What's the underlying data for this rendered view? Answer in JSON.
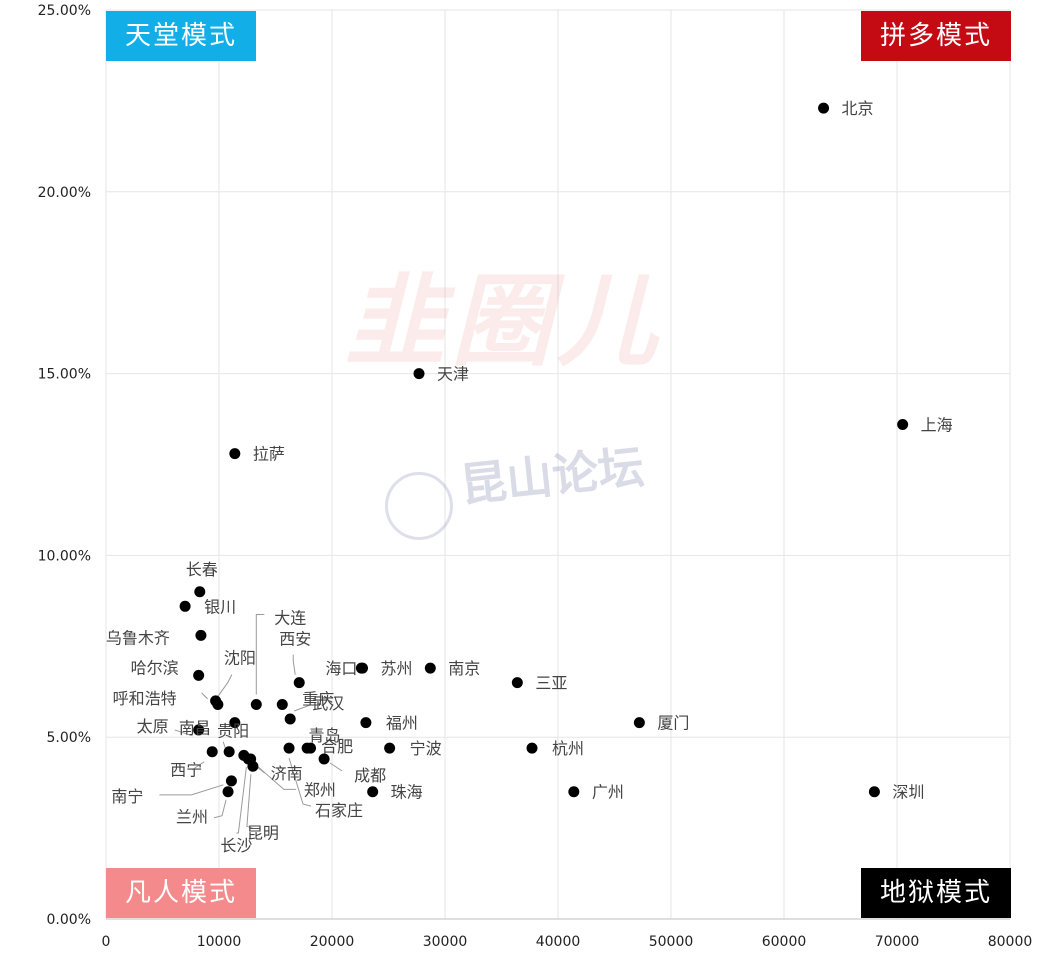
{
  "chart_data": {
    "type": "scatter",
    "title": "",
    "xlabel": "",
    "ylabel": "",
    "xlim": [
      0,
      80000
    ],
    "ylim": [
      0,
      0.25
    ],
    "x_ticks": [
      "0",
      "10000",
      "20000",
      "30000",
      "40000",
      "50000",
      "60000",
      "70000",
      "80000"
    ],
    "y_ticks": [
      "0.00%",
      "5.00%",
      "10.00%",
      "15.00%",
      "20.00%",
      "25.00%"
    ],
    "grid": true,
    "points": [
      {
        "label": "北京",
        "x": 63500,
        "y": 0.223
      },
      {
        "label": "天津",
        "x": 27700,
        "y": 0.15
      },
      {
        "label": "上海",
        "x": 70500,
        "y": 0.136
      },
      {
        "label": "拉萨",
        "x": 11400,
        "y": 0.128
      },
      {
        "label": "长春",
        "x": 8300,
        "y": 0.09
      },
      {
        "label": "银川",
        "x": 7000,
        "y": 0.086
      },
      {
        "label": "乌鲁木齐",
        "x": 8400,
        "y": 0.078
      },
      {
        "label": "大连",
        "x": 13300,
        "y": 0.059
      },
      {
        "label": "西安",
        "x": 17100,
        "y": 0.065
      },
      {
        "label": "海口",
        "x": 22600,
        "y": 0.069
      },
      {
        "label": "苏州",
        "x": 22700,
        "y": 0.069
      },
      {
        "label": "南京",
        "x": 28700,
        "y": 0.069
      },
      {
        "label": "三亚",
        "x": 36400,
        "y": 0.065
      },
      {
        "label": "沈阳",
        "x": 9900,
        "y": 0.059
      },
      {
        "label": "哈尔滨",
        "x": 8200,
        "y": 0.067
      },
      {
        "label": "呼和浩特",
        "x": 9700,
        "y": 0.06
      },
      {
        "label": "武汉",
        "x": 16300,
        "y": 0.055
      },
      {
        "label": "福州",
        "x": 23000,
        "y": 0.054
      },
      {
        "label": "厦门",
        "x": 47200,
        "y": 0.054
      },
      {
        "label": "太原",
        "x": 8200,
        "y": 0.052
      },
      {
        "label": "重庆",
        "x": 15600,
        "y": 0.059
      },
      {
        "label": "南昌",
        "x": 11400,
        "y": 0.054
      },
      {
        "label": "贵阳",
        "x": 10900,
        "y": 0.046
      },
      {
        "label": "青岛",
        "x": 18100,
        "y": 0.047
      },
      {
        "label": "合肥",
        "x": 17800,
        "y": 0.047
      },
      {
        "label": "宁波",
        "x": 25100,
        "y": 0.047
      },
      {
        "label": "杭州",
        "x": 37700,
        "y": 0.047
      },
      {
        "label": "西宁",
        "x": 9400,
        "y": 0.046
      },
      {
        "label": "济南",
        "x": 12800,
        "y": 0.044
      },
      {
        "label": "成都",
        "x": 19300,
        "y": 0.044
      },
      {
        "label": "郑州",
        "x": 12200,
        "y": 0.045
      },
      {
        "label": "南宁",
        "x": 11100,
        "y": 0.038
      },
      {
        "label": "珠海",
        "x": 23600,
        "y": 0.035
      },
      {
        "label": "广州",
        "x": 41400,
        "y": 0.035
      },
      {
        "label": "深圳",
        "x": 68000,
        "y": 0.035
      },
      {
        "label": "兰州",
        "x": 10800,
        "y": 0.035
      },
      {
        "label": "昆明",
        "x": 13000,
        "y": 0.042
      },
      {
        "label": "石家庄",
        "x": 16200,
        "y": 0.047
      },
      {
        "label": "长沙",
        "x": 12600,
        "y": 0.044
      }
    ]
  },
  "quadrant_labels": {
    "top_left": "天堂模式",
    "top_right": "拼多模式",
    "bottom_left": "凡人模式",
    "bottom_right": "地狱模式"
  },
  "quadrant_colors": {
    "top_left": "#12aee8",
    "top_right": "#c40b13",
    "bottom_left": "#f48a8c",
    "bottom_right": "#000000"
  },
  "watermarks": {
    "primary": "韭圈儿",
    "secondary": "昆山论坛"
  }
}
